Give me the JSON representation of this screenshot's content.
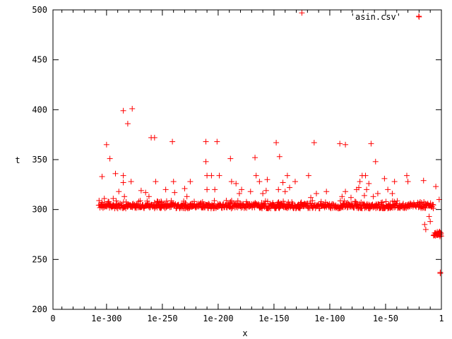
{
  "chart_data": {
    "type": "scatter",
    "title": "",
    "xlabel": "x",
    "ylabel": "t",
    "ylim": [
      200,
      500
    ],
    "x_scale": "log10 exponent position (tick labels shown as 1eN)",
    "xlim_exponent": [
      -348,
      0
    ],
    "x_ticks": [
      {
        "exp": -348,
        "label": "0"
      },
      {
        "exp": -300,
        "label": "1e-300"
      },
      {
        "exp": -250,
        "label": "1e-250"
      },
      {
        "exp": -200,
        "label": "1e-200"
      },
      {
        "exp": -150,
        "label": "1e-150"
      },
      {
        "exp": -100,
        "label": "1e-100"
      },
      {
        "exp": -50,
        "label": "1e-50"
      },
      {
        "exp": 0,
        "label": "1"
      }
    ],
    "y_ticks": [
      {
        "v": 200,
        "label": "200"
      },
      {
        "v": 250,
        "label": "250"
      },
      {
        "v": 300,
        "label": "300"
      },
      {
        "v": 350,
        "label": "350"
      },
      {
        "v": 400,
        "label": "400"
      },
      {
        "v": 450,
        "label": "450"
      },
      {
        "v": 500,
        "label": "500"
      }
    ],
    "grid": false,
    "legend_position": "top-right",
    "series": [
      {
        "name": "'asin.csv'",
        "color": "#ff0000",
        "marker": "plus",
        "baseline": {
          "exp_start": -307,
          "exp_end": -7,
          "t_min": 301,
          "t_max": 306
        },
        "tail_cluster": {
          "exp_start": -7,
          "exp_end": 0,
          "t_min": 273,
          "t_max": 278
        },
        "points": [
          {
            "exp": -304,
            "t": 333
          },
          {
            "exp": -302,
            "t": 311
          },
          {
            "exp": -300,
            "t": 365
          },
          {
            "exp": -297,
            "t": 351
          },
          {
            "exp": -294,
            "t": 311
          },
          {
            "exp": -292,
            "t": 336
          },
          {
            "exp": -289,
            "t": 318
          },
          {
            "exp": -285,
            "t": 334
          },
          {
            "exp": -285,
            "t": 399
          },
          {
            "exp": -285,
            "t": 327
          },
          {
            "exp": -284,
            "t": 313
          },
          {
            "exp": -281,
            "t": 386
          },
          {
            "exp": -278,
            "t": 328
          },
          {
            "exp": -277,
            "t": 401
          },
          {
            "exp": -269,
            "t": 319
          },
          {
            "exp": -265,
            "t": 317
          },
          {
            "exp": -262,
            "t": 313
          },
          {
            "exp": -260,
            "t": 372
          },
          {
            "exp": -257,
            "t": 372
          },
          {
            "exp": -256,
            "t": 328
          },
          {
            "exp": -247,
            "t": 320
          },
          {
            "exp": -241,
            "t": 368
          },
          {
            "exp": -240,
            "t": 328
          },
          {
            "exp": -239,
            "t": 317
          },
          {
            "exp": -230,
            "t": 321
          },
          {
            "exp": -228,
            "t": 313
          },
          {
            "exp": -225,
            "t": 328
          },
          {
            "exp": -211,
            "t": 368
          },
          {
            "exp": -211,
            "t": 348
          },
          {
            "exp": -210,
            "t": 334
          },
          {
            "exp": -210,
            "t": 320
          },
          {
            "exp": -206,
            "t": 334
          },
          {
            "exp": -203,
            "t": 320
          },
          {
            "exp": -201,
            "t": 368
          },
          {
            "exp": -199,
            "t": 334
          },
          {
            "exp": -189,
            "t": 351
          },
          {
            "exp": -188,
            "t": 328
          },
          {
            "exp": -184,
            "t": 326
          },
          {
            "exp": -181,
            "t": 316
          },
          {
            "exp": -179,
            "t": 320
          },
          {
            "exp": -171,
            "t": 318
          },
          {
            "exp": -167,
            "t": 352
          },
          {
            "exp": -166,
            "t": 334
          },
          {
            "exp": -163,
            "t": 328
          },
          {
            "exp": -160,
            "t": 316
          },
          {
            "exp": -157,
            "t": 319
          },
          {
            "exp": -156,
            "t": 330
          },
          {
            "exp": -148,
            "t": 367
          },
          {
            "exp": -146,
            "t": 320
          },
          {
            "exp": -145,
            "t": 353
          },
          {
            "exp": -142,
            "t": 327
          },
          {
            "exp": -140,
            "t": 318
          },
          {
            "exp": -138,
            "t": 334
          },
          {
            "exp": -136,
            "t": 322
          },
          {
            "exp": -131,
            "t": 328
          },
          {
            "exp": -125,
            "t": 497
          },
          {
            "exp": -119,
            "t": 334
          },
          {
            "exp": -117,
            "t": 312
          },
          {
            "exp": -114,
            "t": 367
          },
          {
            "exp": -112,
            "t": 316
          },
          {
            "exp": -103,
            "t": 318
          },
          {
            "exp": -91,
            "t": 366
          },
          {
            "exp": -89,
            "t": 313
          },
          {
            "exp": -86,
            "t": 318
          },
          {
            "exp": -86,
            "t": 365
          },
          {
            "exp": -81,
            "t": 312
          },
          {
            "exp": -76,
            "t": 320
          },
          {
            "exp": -74,
            "t": 322
          },
          {
            "exp": -73,
            "t": 328
          },
          {
            "exp": -71,
            "t": 334
          },
          {
            "exp": -69,
            "t": 314
          },
          {
            "exp": -68,
            "t": 334
          },
          {
            "exp": -67,
            "t": 320
          },
          {
            "exp": -65,
            "t": 326
          },
          {
            "exp": -63,
            "t": 366
          },
          {
            "exp": -61,
            "t": 313
          },
          {
            "exp": -59,
            "t": 348
          },
          {
            "exp": -57,
            "t": 316
          },
          {
            "exp": -51,
            "t": 331
          },
          {
            "exp": -48,
            "t": 320
          },
          {
            "exp": -44,
            "t": 316
          },
          {
            "exp": -42,
            "t": 328
          },
          {
            "exp": -31,
            "t": 334
          },
          {
            "exp": -30,
            "t": 328
          },
          {
            "exp": -20,
            "t": 493
          },
          {
            "exp": -16,
            "t": 329
          },
          {
            "exp": -15,
            "t": 285
          },
          {
            "exp": -14,
            "t": 280
          },
          {
            "exp": -11,
            "t": 293
          },
          {
            "exp": -10,
            "t": 288
          },
          {
            "exp": -5,
            "t": 323
          },
          {
            "exp": -2,
            "t": 310
          },
          {
            "exp": -2,
            "t": 275
          },
          {
            "exp": -1,
            "t": 237
          },
          {
            "exp": -1,
            "t": 236
          }
        ]
      }
    ]
  }
}
